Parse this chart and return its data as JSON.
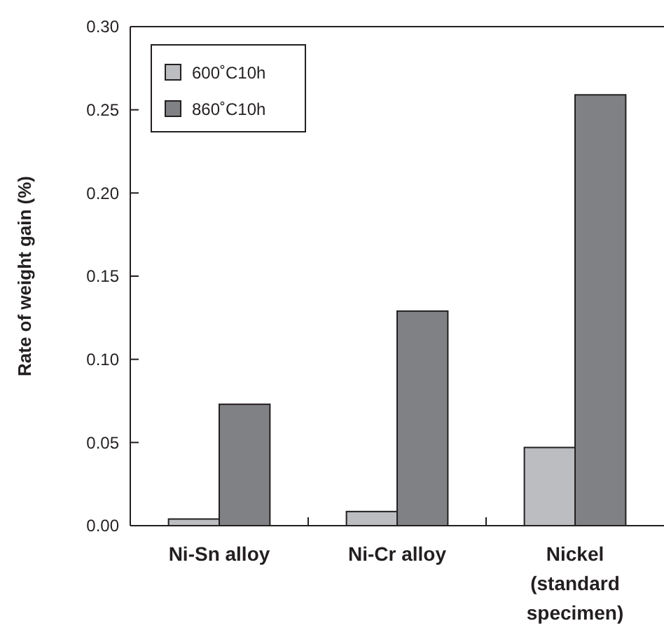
{
  "chart_data": {
    "type": "bar",
    "ylabel": "Rate of weight gain (%)",
    "categories": [
      "Ni-Sn alloy",
      "Ni-Cr alloy",
      "Nickel (standard specimen)"
    ],
    "series": [
      {
        "name": "600˚C10h",
        "color": "#bcbdc0",
        "values": [
          0.004,
          0.0085,
          0.047
        ]
      },
      {
        "name": "860˚C10h",
        "color": "#808184",
        "values": [
          0.073,
          0.129,
          0.259
        ]
      }
    ],
    "ylim": [
      0,
      0.3
    ],
    "yticks": [
      {
        "value": 0,
        "label": "0.00"
      },
      {
        "value": 0.05,
        "label": "0.05"
      },
      {
        "value": 0.1,
        "label": "0.10"
      },
      {
        "value": 0.15,
        "label": "0.15"
      },
      {
        "value": 0.2,
        "label": "0.20"
      },
      {
        "value": 0.25,
        "label": "0.25"
      },
      {
        "value": 0.3,
        "label": "0.30"
      }
    ],
    "grid": false,
    "legend": "top left"
  }
}
